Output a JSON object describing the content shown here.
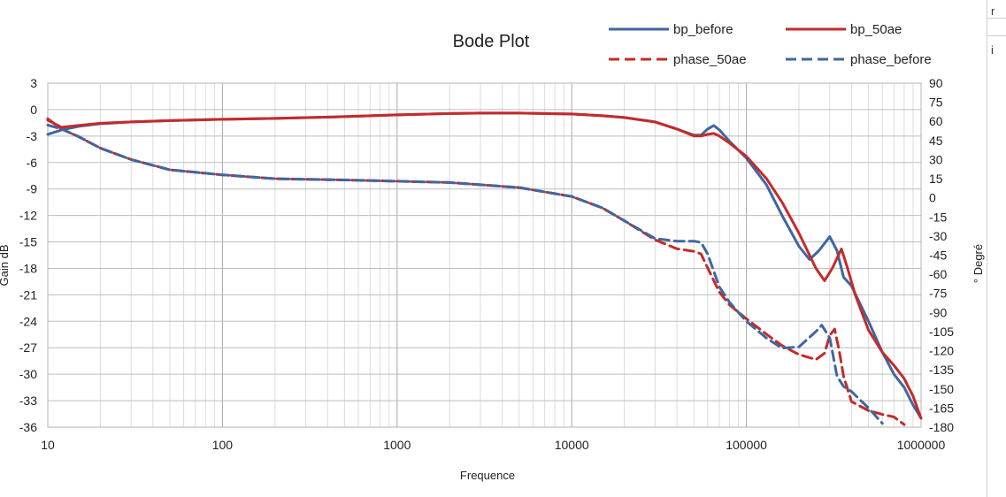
{
  "chart_data": {
    "type": "line",
    "title": "Bode Plot",
    "xlabel": "Frequence",
    "ylabel_left": "Gain dB",
    "ylabel_right": "° Degré",
    "xscale": "log",
    "xlim": [
      10,
      1000000
    ],
    "ylim_left": [
      -36,
      3
    ],
    "ylim_right": [
      -180,
      90
    ],
    "grid": true,
    "legend_position": "top-right",
    "x_ticks": [
      "10",
      "100",
      "1000",
      "10000",
      "100000",
      "1000000"
    ],
    "y_ticks_left": [
      "3",
      "0",
      "-3",
      "-6",
      "-9",
      "-12",
      "-15",
      "-18",
      "-21",
      "-24",
      "-27",
      "-30",
      "-33",
      "-36"
    ],
    "y_ticks_right": [
      "90",
      "75",
      "60",
      "45",
      "30",
      "15",
      "0",
      "-15",
      "-30",
      "-45",
      "-60",
      "-75",
      "-90",
      "-105",
      "-120",
      "-135",
      "-150",
      "-165",
      "-180"
    ],
    "series": [
      {
        "name": "bp_before",
        "axis": "left",
        "color": "#3e67a0",
        "dash": "solid",
        "points": [
          [
            10,
            -2.8
          ],
          [
            12,
            -2.3
          ],
          [
            15,
            -1.9
          ],
          [
            20,
            -1.6
          ],
          [
            30,
            -1.4
          ],
          [
            50,
            -1.25
          ],
          [
            100,
            -1.1
          ],
          [
            200,
            -1.0
          ],
          [
            500,
            -0.8
          ],
          [
            1000,
            -0.6
          ],
          [
            2000,
            -0.45
          ],
          [
            3000,
            -0.4
          ],
          [
            5000,
            -0.4
          ],
          [
            10000,
            -0.5
          ],
          [
            15000,
            -0.7
          ],
          [
            20000,
            -0.9
          ],
          [
            30000,
            -1.4
          ],
          [
            40000,
            -2.2
          ],
          [
            50000,
            -2.9
          ],
          [
            55000,
            -2.9
          ],
          [
            60000,
            -2.2
          ],
          [
            65000,
            -1.8
          ],
          [
            70000,
            -2.3
          ],
          [
            80000,
            -3.6
          ],
          [
            100000,
            -5.5
          ],
          [
            130000,
            -8.5
          ],
          [
            160000,
            -12
          ],
          [
            200000,
            -15.5
          ],
          [
            230000,
            -17
          ],
          [
            260000,
            -16
          ],
          [
            300000,
            -14.4
          ],
          [
            330000,
            -16
          ],
          [
            360000,
            -19
          ],
          [
            400000,
            -20
          ],
          [
            500000,
            -24
          ],
          [
            600000,
            -27.5
          ],
          [
            700000,
            -30
          ],
          [
            800000,
            -31.5
          ],
          [
            900000,
            -33.5
          ],
          [
            1000000,
            -35
          ]
        ]
      },
      {
        "name": "bp_50ae",
        "axis": "left",
        "color": "#c62a2a",
        "dash": "solid",
        "points": [
          [
            10,
            -1.2
          ],
          [
            12,
            -2.0
          ],
          [
            15,
            -1.8
          ],
          [
            20,
            -1.55
          ],
          [
            30,
            -1.4
          ],
          [
            50,
            -1.25
          ],
          [
            100,
            -1.1
          ],
          [
            200,
            -1.0
          ],
          [
            500,
            -0.8
          ],
          [
            1000,
            -0.6
          ],
          [
            2000,
            -0.45
          ],
          [
            3000,
            -0.4
          ],
          [
            5000,
            -0.4
          ],
          [
            10000,
            -0.5
          ],
          [
            15000,
            -0.7
          ],
          [
            20000,
            -0.9
          ],
          [
            30000,
            -1.4
          ],
          [
            40000,
            -2.2
          ],
          [
            50000,
            -3.0
          ],
          [
            55000,
            -3.0
          ],
          [
            60000,
            -2.8
          ],
          [
            65000,
            -2.7
          ],
          [
            70000,
            -3.0
          ],
          [
            80000,
            -3.8
          ],
          [
            100000,
            -5.3
          ],
          [
            130000,
            -7.8
          ],
          [
            160000,
            -10.5
          ],
          [
            200000,
            -14
          ],
          [
            250000,
            -18
          ],
          [
            280000,
            -19.4
          ],
          [
            310000,
            -18
          ],
          [
            350000,
            -15.8
          ],
          [
            380000,
            -18
          ],
          [
            420000,
            -21
          ],
          [
            500000,
            -25
          ],
          [
            600000,
            -27.5
          ],
          [
            700000,
            -29
          ],
          [
            800000,
            -30.5
          ],
          [
            900000,
            -32.5
          ],
          [
            1000000,
            -35
          ]
        ]
      },
      {
        "name": "phase_50ae",
        "axis": "right",
        "color": "#c62a2a",
        "dash": "dashed",
        "points": [
          [
            10,
            62
          ],
          [
            12,
            54
          ],
          [
            15,
            48
          ],
          [
            20,
            39
          ],
          [
            30,
            30
          ],
          [
            50,
            22
          ],
          [
            100,
            18
          ],
          [
            200,
            15
          ],
          [
            500,
            14
          ],
          [
            1000,
            13
          ],
          [
            2000,
            12
          ],
          [
            5000,
            8
          ],
          [
            10000,
            1
          ],
          [
            15000,
            -8
          ],
          [
            20000,
            -18
          ],
          [
            30000,
            -33
          ],
          [
            40000,
            -40
          ],
          [
            50000,
            -42
          ],
          [
            55000,
            -44
          ],
          [
            60000,
            -55
          ],
          [
            70000,
            -74
          ],
          [
            80000,
            -84
          ],
          [
            100000,
            -95
          ],
          [
            130000,
            -107
          ],
          [
            160000,
            -116
          ],
          [
            200000,
            -123
          ],
          [
            250000,
            -127
          ],
          [
            280000,
            -122
          ],
          [
            300000,
            -108
          ],
          [
            320000,
            -103
          ],
          [
            340000,
            -120
          ],
          [
            360000,
            -140
          ],
          [
            400000,
            -160
          ],
          [
            500000,
            -167
          ],
          [
            600000,
            -170
          ],
          [
            700000,
            -172
          ],
          [
            800000,
            -178
          ]
        ]
      },
      {
        "name": "phase_before",
        "axis": "right",
        "color": "#3e67a0",
        "dash": "dashed",
        "points": [
          [
            10,
            57
          ],
          [
            12,
            54
          ],
          [
            15,
            48
          ],
          [
            20,
            39
          ],
          [
            30,
            30
          ],
          [
            50,
            22
          ],
          [
            100,
            18
          ],
          [
            200,
            15
          ],
          [
            500,
            14
          ],
          [
            1000,
            13
          ],
          [
            2000,
            12
          ],
          [
            5000,
            8
          ],
          [
            10000,
            1
          ],
          [
            15000,
            -8
          ],
          [
            20000,
            -18
          ],
          [
            30000,
            -32
          ],
          [
            40000,
            -34
          ],
          [
            50000,
            -34
          ],
          [
            55000,
            -35
          ],
          [
            60000,
            -44
          ],
          [
            70000,
            -70
          ],
          [
            80000,
            -82
          ],
          [
            100000,
            -97
          ],
          [
            130000,
            -110
          ],
          [
            160000,
            -118
          ],
          [
            200000,
            -117
          ],
          [
            250000,
            -105
          ],
          [
            270000,
            -100
          ],
          [
            300000,
            -110
          ],
          [
            330000,
            -140
          ],
          [
            360000,
            -148
          ],
          [
            400000,
            -152
          ],
          [
            500000,
            -165
          ],
          [
            600000,
            -177
          ]
        ]
      }
    ]
  },
  "edge": {
    "letters": [
      "r",
      "i"
    ]
  }
}
